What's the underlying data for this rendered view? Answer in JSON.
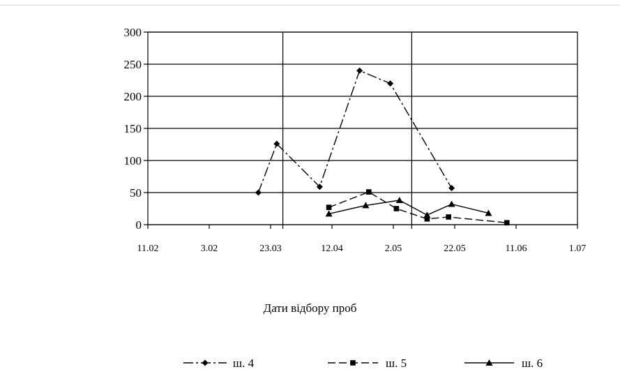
{
  "chart_data": {
    "type": "line",
    "title": "",
    "xlabel": "Дати відбору проб",
    "ylabel": "",
    "ylim": [
      0,
      300
    ],
    "yticks": [
      0,
      50,
      100,
      150,
      200,
      250,
      300
    ],
    "x_ticks": [
      "11.02",
      "3.02",
      "23.03",
      "12.04",
      "2.05",
      "22.05",
      "11.06",
      "1.07"
    ],
    "grid": "major y lines and two vertical lines",
    "legend_position": "bottom",
    "series": [
      {
        "name": "ш. 4",
        "line_style": "dash-dot",
        "marker": "diamond",
        "points": [
          {
            "x": "19.03",
            "y": 50
          },
          {
            "x": "25.03",
            "y": 126
          },
          {
            "x": "8.04",
            "y": 59
          },
          {
            "x": "21.04",
            "y": 240
          },
          {
            "x": "1.05",
            "y": 220
          },
          {
            "x": "21.05",
            "y": 57
          }
        ]
      },
      {
        "name": "ш. 5",
        "line_style": "dashed",
        "marker": "square",
        "points": [
          {
            "x": "11.04",
            "y": 27
          },
          {
            "x": "24.04",
            "y": 51
          },
          {
            "x": "3.05",
            "y": 25
          },
          {
            "x": "13.05",
            "y": 9
          },
          {
            "x": "20.05",
            "y": 12
          },
          {
            "x": "8.06",
            "y": 3
          }
        ]
      },
      {
        "name": "ш. 6",
        "line_style": "solid",
        "marker": "triangle",
        "points": [
          {
            "x": "11.04",
            "y": 17
          },
          {
            "x": "23.04",
            "y": 30
          },
          {
            "x": "4.05",
            "y": 38
          },
          {
            "x": "13.05",
            "y": 15
          },
          {
            "x": "21.05",
            "y": 32
          },
          {
            "x": "2.06",
            "y": 18
          }
        ]
      }
    ]
  }
}
